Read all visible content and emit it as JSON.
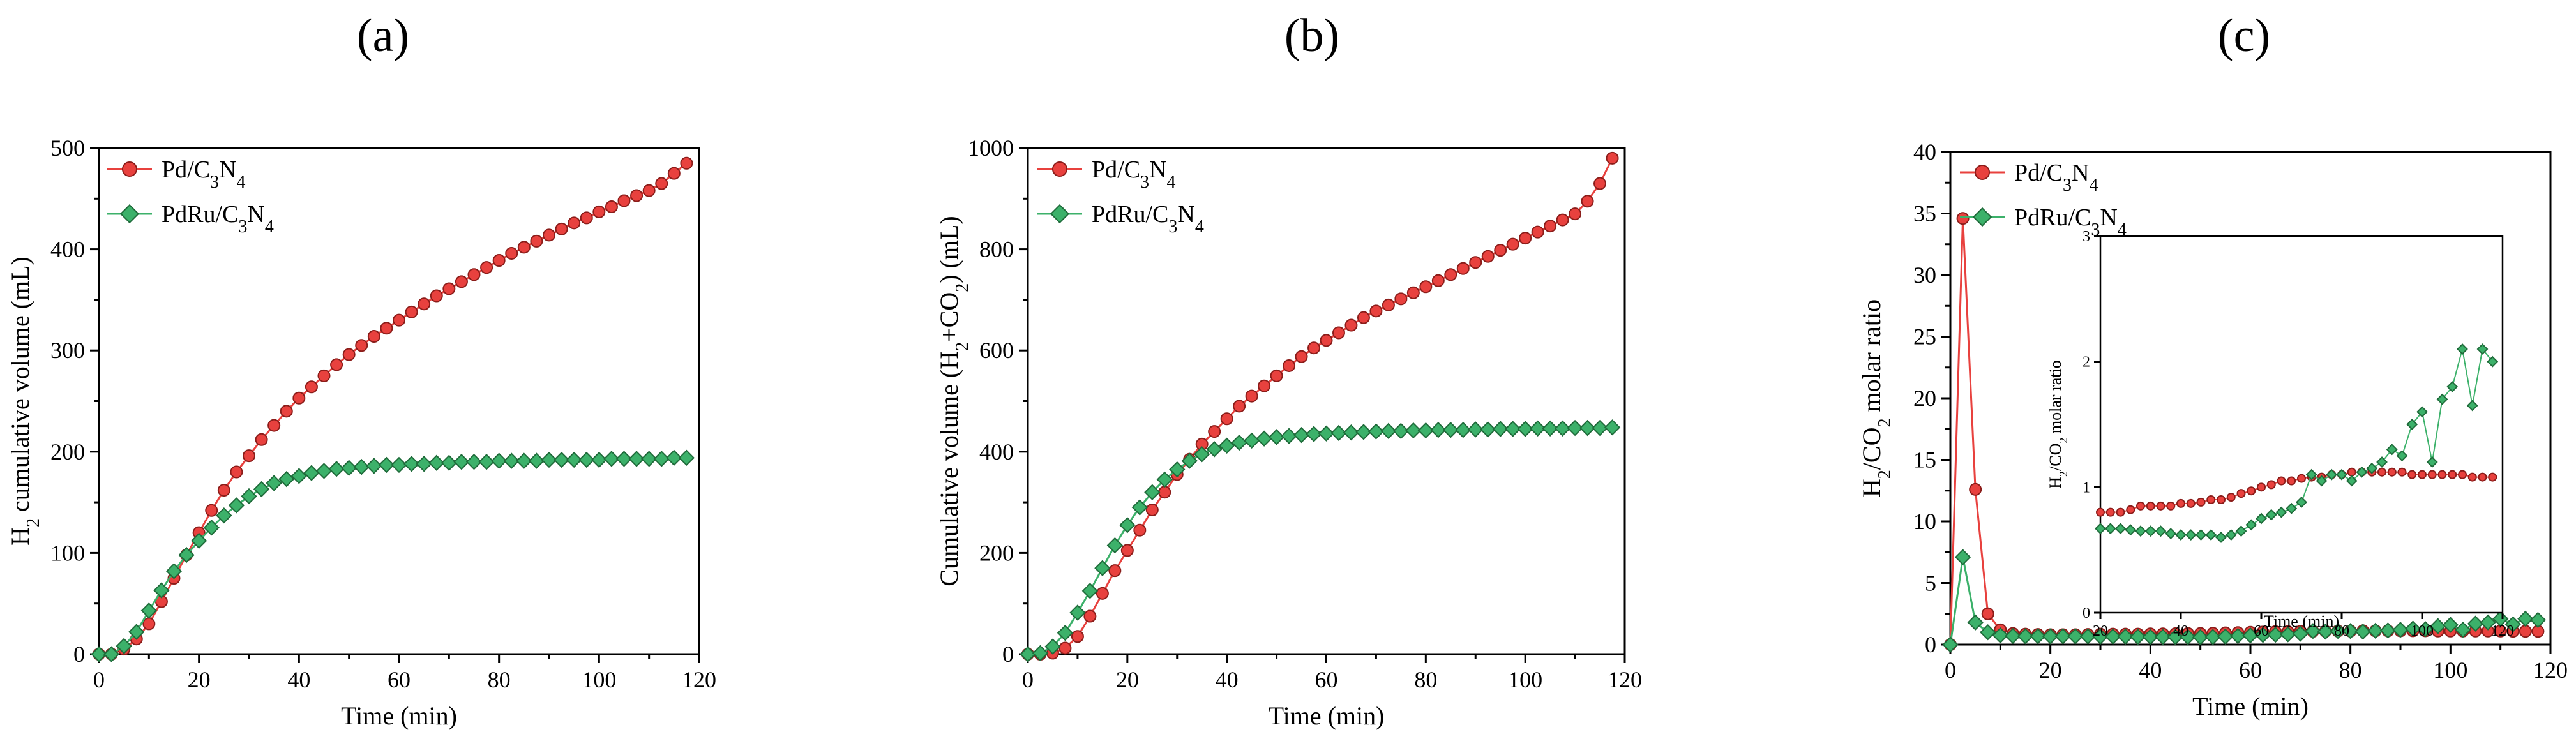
{
  "colors": {
    "pd": "#e8413e",
    "pdru": "#3cb16a",
    "pd_marker_stroke": "#8b1d1a",
    "pdru_marker_stroke": "#1f6b3a"
  },
  "chart_data": [
    {
      "type": "scatter",
      "panel_label": "(a)",
      "xlabel": "Time (min)",
      "ylabel": "H2 cumulative volume (mL)",
      "ylabel_parts": {
        "main": "H",
        "sub": "2",
        "rest": " cumulative volume (mL)"
      },
      "xlim": [
        0,
        120
      ],
      "ylim": [
        0,
        500
      ],
      "xticks": [
        "0",
        "20",
        "40",
        "60",
        "80",
        "100",
        "120"
      ],
      "yticks": [
        "0",
        "100",
        "200",
        "300",
        "400",
        "500"
      ],
      "legend": [
        {
          "name": "Pd/C3N4",
          "parts": {
            "a": "Pd/C",
            "s1": "3",
            "b": "N",
            "s2": "4"
          }
        },
        {
          "name": "PdRu/C3N4",
          "parts": {
            "a": "PdRu/C",
            "s1": "3",
            "b": "N",
            "s2": "4"
          }
        }
      ],
      "series": [
        {
          "name": "Pd/C3N4",
          "x": [
            0,
            2.5,
            5,
            7.5,
            10,
            12.5,
            15,
            17.5,
            20,
            22.5,
            25,
            27.5,
            30,
            32.5,
            35,
            37.5,
            40,
            42.5,
            45,
            47.5,
            50,
            52.5,
            55,
            57.5,
            60,
            62.5,
            65,
            67.5,
            70,
            72.5,
            75,
            77.5,
            80,
            82.5,
            85,
            87.5,
            90,
            92.5,
            95,
            97.5,
            100,
            102.5,
            105,
            107.5,
            110,
            112.5,
            115,
            117.5
          ],
          "values": [
            0,
            0,
            5,
            15,
            30,
            52,
            75,
            98,
            120,
            142,
            162,
            180,
            196,
            212,
            226,
            240,
            253,
            264,
            275,
            286,
            296,
            305,
            314,
            322,
            330,
            338,
            346,
            354,
            361,
            368,
            375,
            382,
            389,
            396,
            402,
            408,
            414,
            420,
            426,
            431,
            437,
            442,
            448,
            453,
            458,
            465,
            475,
            485
          ]
        },
        {
          "name": "PdRu/C3N4",
          "x": [
            0,
            2.5,
            5,
            7.5,
            10,
            12.5,
            15,
            17.5,
            20,
            22.5,
            25,
            27.5,
            30,
            32.5,
            35,
            37.5,
            40,
            42.5,
            45,
            47.5,
            50,
            52.5,
            55,
            57.5,
            60,
            62.5,
            65,
            67.5,
            70,
            72.5,
            75,
            77.5,
            80,
            82.5,
            85,
            87.5,
            90,
            92.5,
            95,
            97.5,
            100,
            102.5,
            105,
            107.5,
            110,
            112.5,
            115,
            117.5
          ],
          "values": [
            0,
            0,
            8,
            22,
            43,
            63,
            82,
            98,
            112,
            125,
            137,
            147,
            156,
            163,
            169,
            173,
            176,
            179,
            181,
            183,
            184,
            185,
            186,
            187,
            187,
            188,
            188,
            189,
            189,
            190,
            190,
            190,
            191,
            191,
            191,
            191,
            192,
            192,
            192,
            192,
            192,
            193,
            193,
            193,
            193,
            193,
            194,
            194
          ]
        }
      ]
    },
    {
      "type": "scatter",
      "panel_label": "(b)",
      "xlabel": "Time (min)",
      "ylabel": "Cumulative volume (H2+CO2) (mL)",
      "ylabel_parts": {
        "a": "Cumulative volume (H",
        "s1": "2",
        "b": "+CO",
        "s2": "2",
        "c": ") (mL)"
      },
      "xlim": [
        0,
        120
      ],
      "ylim": [
        0,
        1000
      ],
      "xticks": [
        "0",
        "20",
        "40",
        "60",
        "80",
        "100",
        "120"
      ],
      "yticks": [
        "0",
        "200",
        "400",
        "600",
        "800",
        "1000"
      ],
      "legend": [
        {
          "name": "Pd/C3N4",
          "parts": {
            "a": "Pd/C",
            "s1": "3",
            "b": "N",
            "s2": "4"
          }
        },
        {
          "name": "PdRu/C3N4",
          "parts": {
            "a": "PdRu/C",
            "s1": "3",
            "b": "N",
            "s2": "4"
          }
        }
      ],
      "series": [
        {
          "name": "Pd/C3N4",
          "x": [
            0,
            2.5,
            5,
            7.5,
            10,
            12.5,
            15,
            17.5,
            20,
            22.5,
            25,
            27.5,
            30,
            32.5,
            35,
            37.5,
            40,
            42.5,
            45,
            47.5,
            50,
            52.5,
            55,
            57.5,
            60,
            62.5,
            65,
            67.5,
            70,
            72.5,
            75,
            77.5,
            80,
            82.5,
            85,
            87.5,
            90,
            92.5,
            95,
            97.5,
            100,
            102.5,
            105,
            107.5,
            110,
            112.5,
            115,
            117.5
          ],
          "values": [
            0,
            0,
            2,
            12,
            35,
            75,
            120,
            165,
            205,
            245,
            285,
            320,
            355,
            385,
            415,
            440,
            465,
            490,
            510,
            530,
            550,
            570,
            588,
            605,
            620,
            635,
            650,
            665,
            678,
            690,
            702,
            714,
            726,
            738,
            750,
            762,
            774,
            786,
            798,
            810,
            822,
            834,
            846,
            858,
            870,
            895,
            930,
            980
          ]
        },
        {
          "name": "PdRu/C3N4",
          "x": [
            0,
            2.5,
            5,
            7.5,
            10,
            12.5,
            15,
            17.5,
            20,
            22.5,
            25,
            27.5,
            30,
            32.5,
            35,
            37.5,
            40,
            42.5,
            45,
            47.5,
            50,
            52.5,
            55,
            57.5,
            60,
            62.5,
            65,
            67.5,
            70,
            72.5,
            75,
            77.5,
            80,
            82.5,
            85,
            87.5,
            90,
            92.5,
            95,
            97.5,
            100,
            102.5,
            105,
            107.5,
            110,
            112.5,
            115,
            117.5
          ],
          "values": [
            0,
            2,
            15,
            42,
            82,
            125,
            170,
            215,
            255,
            290,
            320,
            345,
            365,
            382,
            395,
            405,
            412,
            418,
            422,
            426,
            429,
            431,
            433,
            435,
            436,
            437,
            438,
            439,
            440,
            441,
            441,
            442,
            442,
            443,
            443,
            443,
            444,
            444,
            445,
            445,
            445,
            446,
            446,
            446,
            447,
            447,
            447,
            448
          ]
        }
      ]
    },
    {
      "type": "line",
      "panel_label": "(c)",
      "xlabel": "Time (min)",
      "ylabel": "H2/CO2 molar ratio",
      "ylabel_parts": {
        "a": "H",
        "s1": "2",
        "b": "/CO",
        "s2": "2",
        "c": " molar ratio"
      },
      "xlim": [
        0,
        120
      ],
      "ylim": [
        0,
        40
      ],
      "xticks": [
        "0",
        "20",
        "40",
        "60",
        "80",
        "100",
        "120"
      ],
      "yticks": [
        "0",
        "5",
        "10",
        "15",
        "20",
        "25",
        "30",
        "35",
        "40"
      ],
      "legend": [
        {
          "name": "Pd/C3N4",
          "parts": {
            "a": "Pd/C",
            "s1": "3",
            "b": "N",
            "s2": "4"
          }
        },
        {
          "name": "PdRu/C3N4",
          "parts": {
            "a": "PdRu/C",
            "s1": "3",
            "b": "N",
            "s2": "4"
          }
        }
      ],
      "series": [
        {
          "name": "Pd/C3N4",
          "x": [
            0,
            2.5,
            5,
            7.5,
            10,
            12.5,
            15,
            17.5,
            20,
            22.5,
            25,
            27.5,
            30,
            32.5,
            35,
            37.5,
            40,
            42.5,
            45,
            47.5,
            50,
            52.5,
            55,
            57.5,
            60,
            62.5,
            65,
            67.5,
            70,
            72.5,
            75,
            77.5,
            80,
            82.5,
            85,
            87.5,
            90,
            92.5,
            95,
            97.5,
            100,
            102.5,
            105,
            107.5,
            110,
            112.5,
            115,
            117.5
          ],
          "values": [
            0,
            34.6,
            12.6,
            2.5,
            1.2,
            0.9,
            0.85,
            0.82,
            0.8,
            0.8,
            0.8,
            0.82,
            0.85,
            0.85,
            0.85,
            0.85,
            0.87,
            0.87,
            0.88,
            0.9,
            0.9,
            0.92,
            0.95,
            0.97,
            1.0,
            1.02,
            1.05,
            1.05,
            1.07,
            1.08,
            1.08,
            1.1,
            1.1,
            1.12,
            1.12,
            1.12,
            1.12,
            1.12,
            1.12,
            1.1,
            1.1,
            1.1,
            1.1,
            1.1,
            1.1,
            1.08,
            1.08,
            1.08
          ]
        },
        {
          "name": "PdRu/C3N4",
          "x": [
            0,
            2.5,
            5,
            7.5,
            10,
            12.5,
            15,
            17.5,
            20,
            22.5,
            25,
            27.5,
            30,
            32.5,
            35,
            37.5,
            40,
            42.5,
            45,
            47.5,
            50,
            52.5,
            55,
            57.5,
            60,
            62.5,
            65,
            67.5,
            70,
            72.5,
            75,
            77.5,
            80,
            82.5,
            85,
            87.5,
            90,
            92.5,
            95,
            97.5,
            100,
            102.5,
            105,
            107.5,
            110,
            112.5,
            115,
            117.5
          ],
          "values": [
            0,
            7.1,
            1.8,
            1.0,
            0.75,
            0.7,
            0.68,
            0.68,
            0.67,
            0.67,
            0.67,
            0.66,
            0.65,
            0.65,
            0.65,
            0.63,
            0.62,
            0.62,
            0.62,
            0.62,
            0.6,
            0.62,
            0.65,
            0.7,
            0.75,
            0.78,
            0.8,
            0.83,
            0.88,
            1.1,
            1.05,
            1.1,
            1.1,
            1.05,
            1.12,
            1.15,
            1.2,
            1.3,
            1.25,
            1.5,
            1.6,
            1.2,
            1.7,
            1.8,
            2.1,
            1.65,
            2.1,
            2.0
          ]
        }
      ],
      "inset": {
        "xlabel": "Time (min)",
        "ylabel": "H2/CO2 molar ratio",
        "xlim": [
          20,
          120
        ],
        "ylim": [
          0,
          3
        ],
        "xticks": [
          "20",
          "40",
          "60",
          "80",
          "100",
          "120"
        ],
        "yticks": [
          "0",
          "1",
          "2",
          "3"
        ]
      }
    }
  ]
}
